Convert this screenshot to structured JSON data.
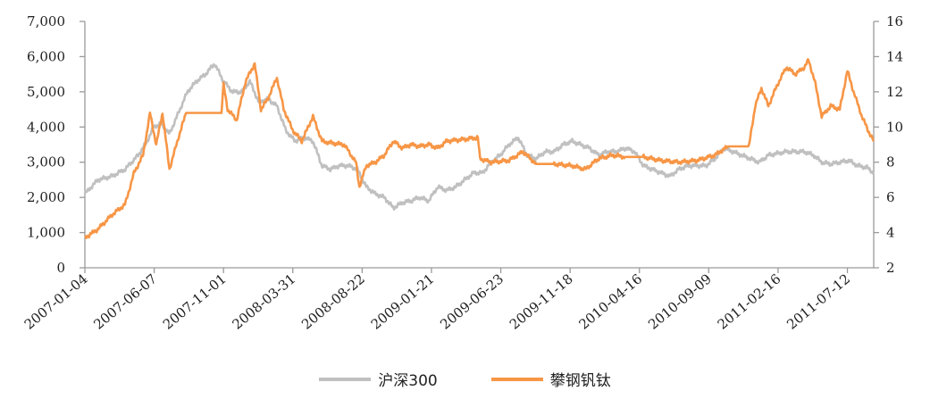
{
  "chart_data": {
    "type": "line",
    "title": "",
    "xlabel": "",
    "x_unit": "trading day index from 2007-01-04",
    "x_tick_days": [
      0,
      100,
      200,
      300,
      400,
      500,
      600,
      700,
      800,
      900,
      1000,
      1100
    ],
    "x_tick_labels": [
      "2007-01-04",
      "2007-06-07",
      "2007-11-01",
      "2008-03-31",
      "2008-08-22",
      "2009-01-21",
      "2009-06-23",
      "2009-11-18",
      "2010-04-16",
      "2010-09-09",
      "2011-02-16",
      "2011-07-12"
    ],
    "xlim": [
      0,
      1138
    ],
    "y_left": {
      "ylim": [
        0,
        7000
      ],
      "ticks": [
        0,
        1000,
        2000,
        3000,
        4000,
        5000,
        6000,
        7000
      ],
      "tick_labels": [
        "0",
        "1,000",
        "2,000",
        "3,000",
        "4,000",
        "5,000",
        "6,000",
        "7,000"
      ]
    },
    "y_right": {
      "ylim": [
        2,
        16
      ],
      "ticks": [
        2,
        4,
        6,
        8,
        10,
        12,
        14,
        16
      ],
      "tick_labels": [
        "2",
        "4",
        "6",
        "8",
        "10",
        "12",
        "14",
        "16"
      ]
    },
    "grid": false,
    "legend_position": "bottom",
    "series": [
      {
        "name": "沪深300",
        "axis": "left",
        "color": "#c0c0c0",
        "points": [
          [
            0,
            2100
          ],
          [
            19,
            2500
          ],
          [
            39,
            2600
          ],
          [
            58,
            2800
          ],
          [
            77,
            3200
          ],
          [
            90,
            3600
          ],
          [
            99,
            4000
          ],
          [
            110,
            4100
          ],
          [
            122,
            3800
          ],
          [
            135,
            4400
          ],
          [
            148,
            5000
          ],
          [
            161,
            5300
          ],
          [
            174,
            5500
          ],
          [
            187,
            5800
          ],
          [
            200,
            5300
          ],
          [
            213,
            5000
          ],
          [
            226,
            5000
          ],
          [
            238,
            5300
          ],
          [
            251,
            4700
          ],
          [
            264,
            4800
          ],
          [
            277,
            4600
          ],
          [
            290,
            3900
          ],
          [
            303,
            3600
          ],
          [
            316,
            3700
          ],
          [
            329,
            3600
          ],
          [
            342,
            2900
          ],
          [
            354,
            2800
          ],
          [
            367,
            2900
          ],
          [
            380,
            2900
          ],
          [
            393,
            2800
          ],
          [
            406,
            2300
          ],
          [
            419,
            2100
          ],
          [
            432,
            2000
          ],
          [
            445,
            1700
          ],
          [
            458,
            1850
          ],
          [
            470,
            1900
          ],
          [
            483,
            2000
          ],
          [
            496,
            1900
          ],
          [
            509,
            2300
          ],
          [
            522,
            2200
          ],
          [
            535,
            2300
          ],
          [
            548,
            2500
          ],
          [
            561,
            2700
          ],
          [
            574,
            2700
          ],
          [
            586,
            3000
          ],
          [
            599,
            3200
          ],
          [
            612,
            3500
          ],
          [
            625,
            3700
          ],
          [
            638,
            3200
          ],
          [
            651,
            3100
          ],
          [
            664,
            3300
          ],
          [
            677,
            3300
          ],
          [
            690,
            3500
          ],
          [
            703,
            3600
          ],
          [
            715,
            3500
          ],
          [
            728,
            3400
          ],
          [
            741,
            3200
          ],
          [
            754,
            3300
          ],
          [
            767,
            3300
          ],
          [
            780,
            3400
          ],
          [
            793,
            3300
          ],
          [
            806,
            2900
          ],
          [
            818,
            2800
          ],
          [
            831,
            2700
          ],
          [
            844,
            2600
          ],
          [
            857,
            2800
          ],
          [
            870,
            2900
          ],
          [
            883,
            2900
          ],
          [
            896,
            2900
          ],
          [
            909,
            3100
          ],
          [
            922,
            3400
          ],
          [
            935,
            3300
          ],
          [
            947,
            3200
          ],
          [
            960,
            3100
          ],
          [
            973,
            3000
          ],
          [
            986,
            3200
          ],
          [
            999,
            3250
          ],
          [
            1012,
            3300
          ],
          [
            1025,
            3300
          ],
          [
            1038,
            3300
          ],
          [
            1051,
            3200
          ],
          [
            1063,
            3000
          ],
          [
            1076,
            2950
          ],
          [
            1089,
            3000
          ],
          [
            1102,
            3050
          ],
          [
            1115,
            2900
          ],
          [
            1128,
            2850
          ],
          [
            1138,
            2700
          ]
        ]
      },
      {
        "name": "攀钢钒钛",
        "axis": "right",
        "color": "#f79646",
        "points": [
          [
            0,
            3.7
          ],
          [
            19,
            4.2
          ],
          [
            39,
            5.0
          ],
          [
            58,
            5.6
          ],
          [
            71,
            7.4
          ],
          [
            84,
            8.4
          ],
          [
            94,
            10.8
          ],
          [
            103,
            9.0
          ],
          [
            112,
            10.8
          ],
          [
            122,
            7.6
          ],
          [
            135,
            9.4
          ],
          [
            146,
            10.8
          ],
          [
            161,
            10.8
          ],
          [
            197,
            10.8
          ],
          [
            200,
            12.4
          ],
          [
            206,
            11.0
          ],
          [
            219,
            10.4
          ],
          [
            232,
            12.6
          ],
          [
            245,
            13.6
          ],
          [
            254,
            11.0
          ],
          [
            264,
            11.6
          ],
          [
            277,
            12.8
          ],
          [
            287,
            11.0
          ],
          [
            300,
            9.8
          ],
          [
            313,
            9.2
          ],
          [
            329,
            10.6
          ],
          [
            342,
            9.2
          ],
          [
            354,
            9.1
          ],
          [
            374,
            9.0
          ],
          [
            391,
            8.0
          ],
          [
            396,
            6.6
          ],
          [
            406,
            7.8
          ],
          [
            419,
            8.0
          ],
          [
            432,
            8.4
          ],
          [
            445,
            9.2
          ],
          [
            458,
            8.8
          ],
          [
            470,
            9.0
          ],
          [
            483,
            8.9
          ],
          [
            496,
            9.0
          ],
          [
            509,
            8.8
          ],
          [
            522,
            9.2
          ],
          [
            548,
            9.3
          ],
          [
            567,
            9.4
          ],
          [
            570,
            8.2
          ],
          [
            586,
            8.0
          ],
          [
            612,
            8.1
          ],
          [
            632,
            8.6
          ],
          [
            651,
            7.9
          ],
          [
            677,
            7.9
          ],
          [
            703,
            7.8
          ],
          [
            722,
            7.6
          ],
          [
            741,
            8.2
          ],
          [
            761,
            8.4
          ],
          [
            780,
            8.3
          ],
          [
            806,
            8.3
          ],
          [
            831,
            8.1
          ],
          [
            857,
            8.0
          ],
          [
            883,
            8.1
          ],
          [
            909,
            8.4
          ],
          [
            928,
            8.9
          ],
          [
            958,
            8.9
          ],
          [
            967,
            11.2
          ],
          [
            976,
            12.2
          ],
          [
            986,
            11.2
          ],
          [
            999,
            12.4
          ],
          [
            1012,
            13.4
          ],
          [
            1025,
            13.0
          ],
          [
            1038,
            13.4
          ],
          [
            1044,
            13.8
          ],
          [
            1053,
            12.6
          ],
          [
            1063,
            10.6
          ],
          [
            1076,
            11.2
          ],
          [
            1089,
            11.0
          ],
          [
            1100,
            13.2
          ],
          [
            1109,
            12.0
          ],
          [
            1121,
            10.6
          ],
          [
            1130,
            9.8
          ],
          [
            1138,
            9.2
          ]
        ]
      }
    ]
  }
}
